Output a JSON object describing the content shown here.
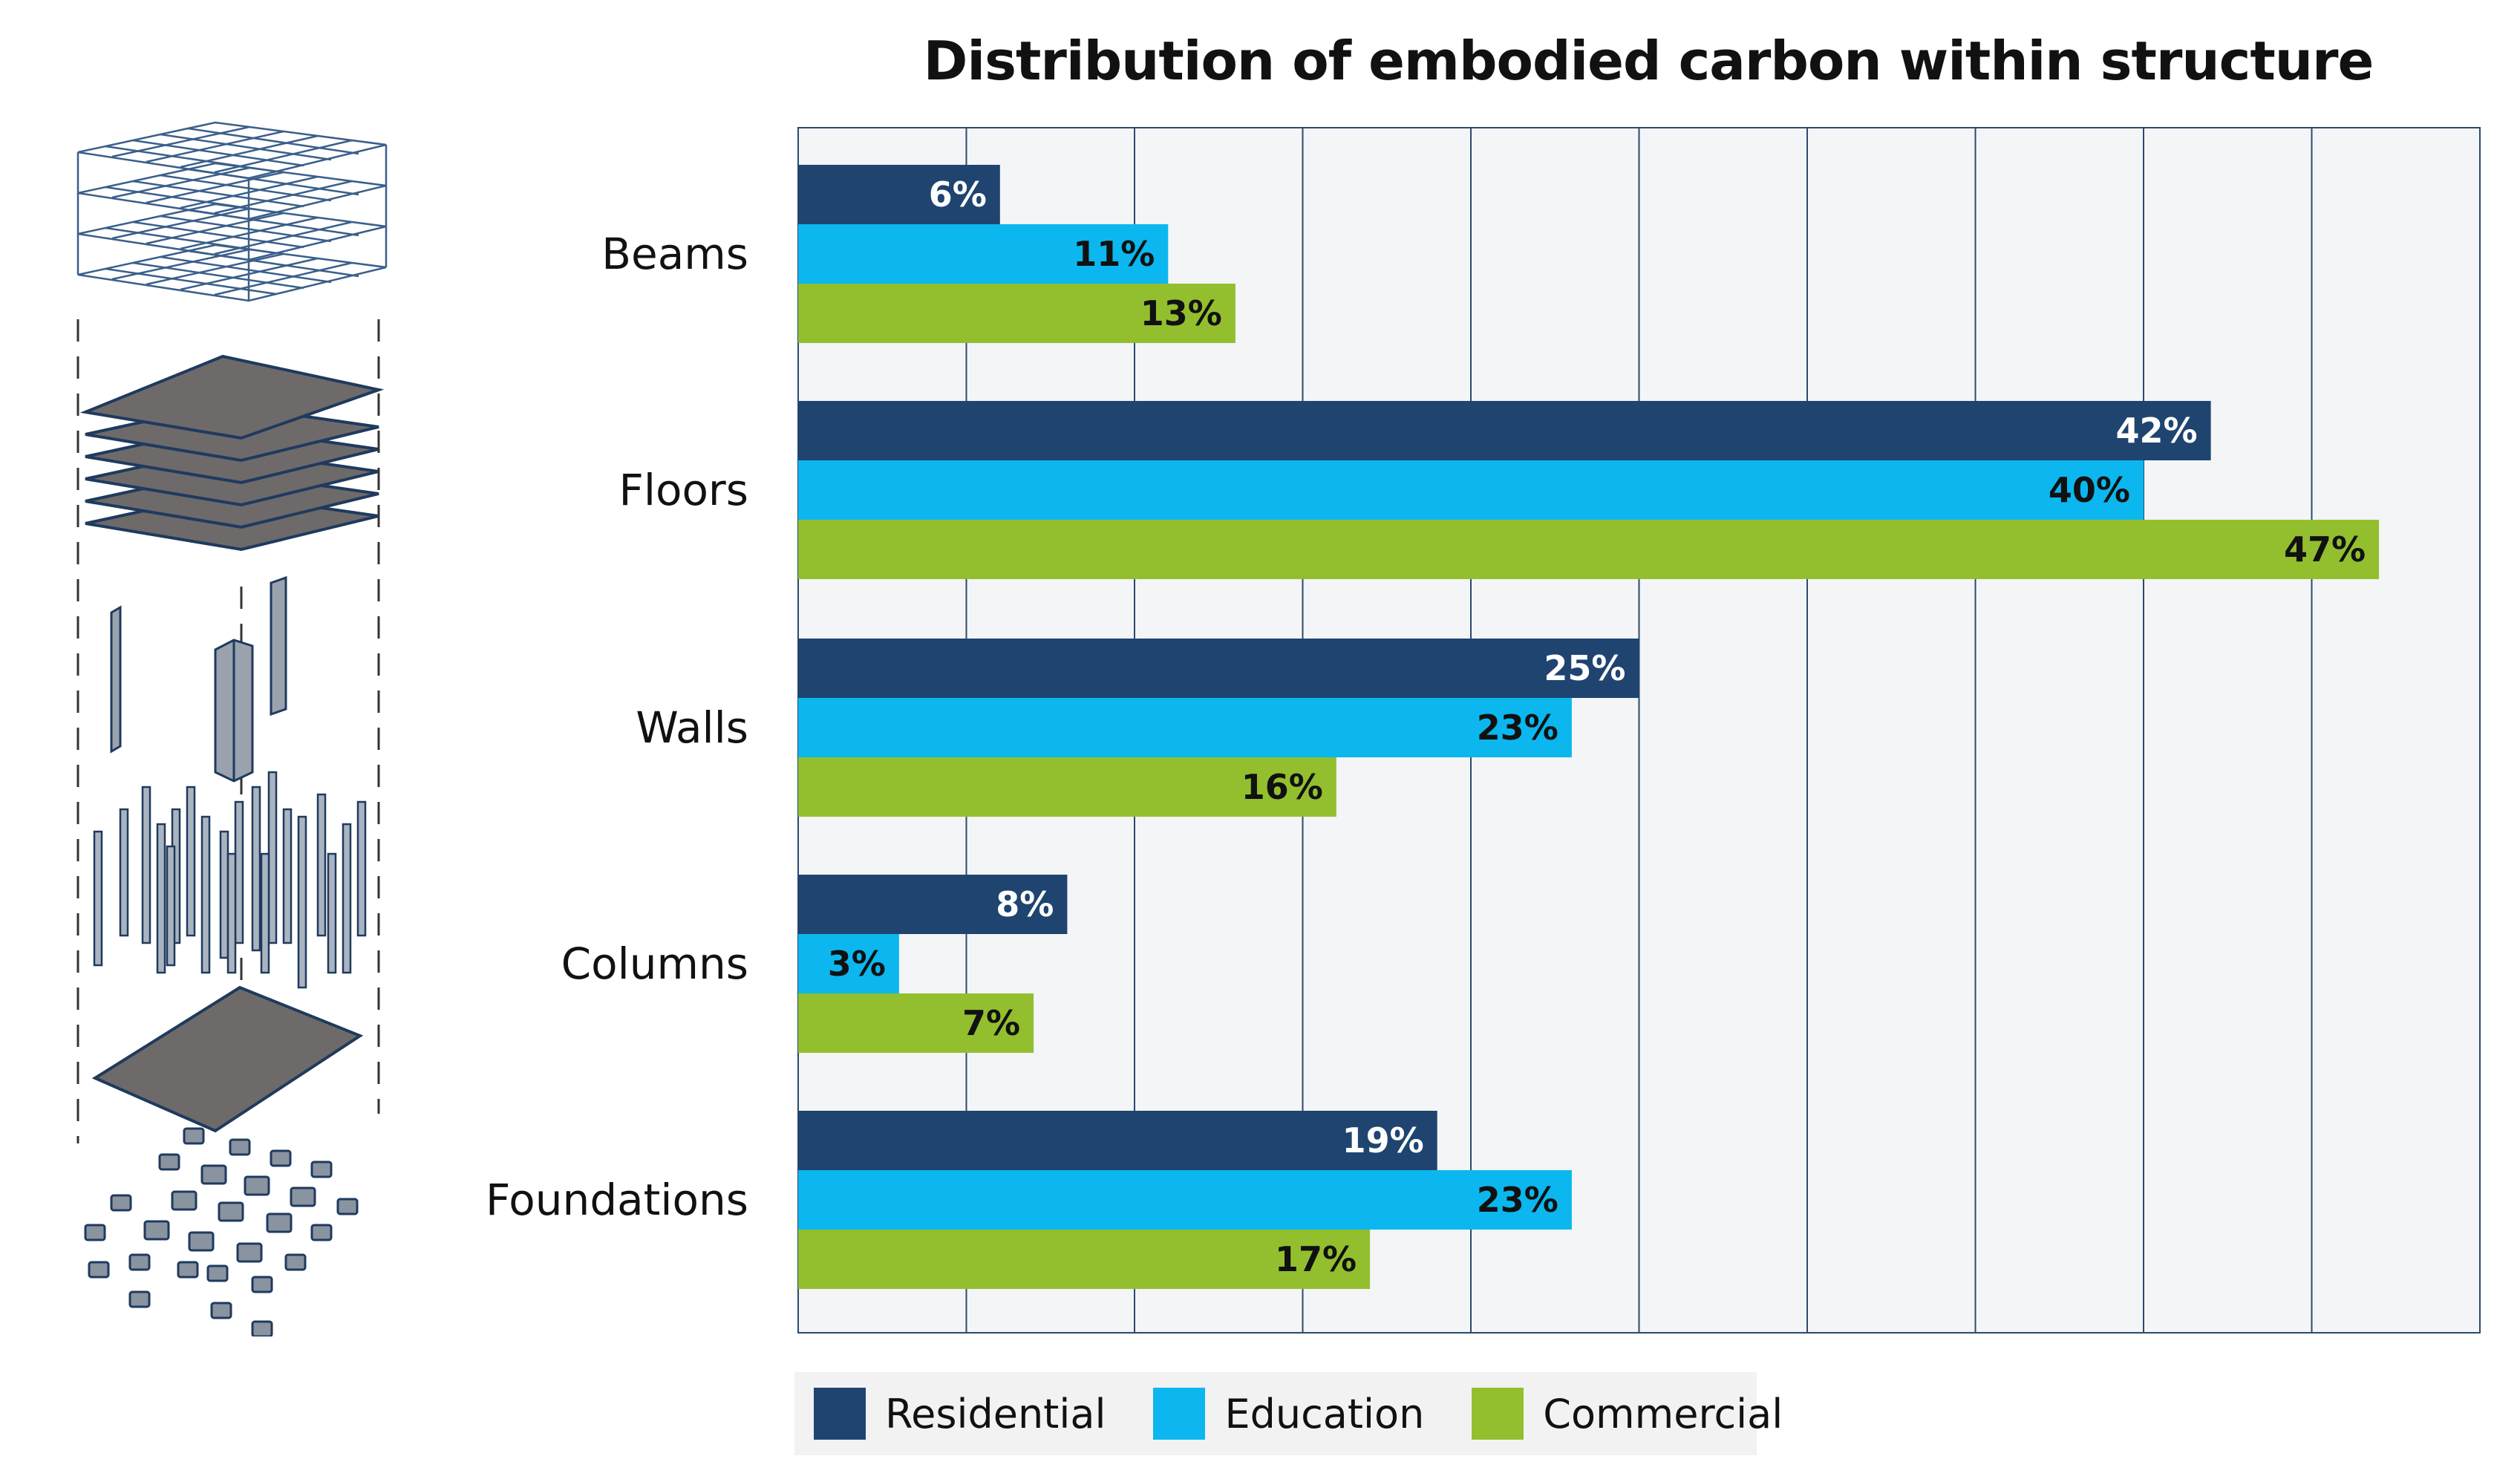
{
  "chart_data": {
    "type": "bar",
    "orientation": "horizontal",
    "title": "Distribution of embodied carbon within structure",
    "categories": [
      "Beams",
      "Floors",
      "Walls",
      "Columns",
      "Foundations"
    ],
    "series": [
      {
        "name": "Residential",
        "color": "#1f4470",
        "label_color": "#ffffff",
        "values": [
          6,
          42,
          25,
          8,
          19
        ]
      },
      {
        "name": "Education",
        "color": "#0bb7ee",
        "label_color": "#111111",
        "values": [
          11,
          40,
          23,
          3,
          23
        ]
      },
      {
        "name": "Commercial",
        "color": "#93bf2f",
        "label_color": "#111111",
        "values": [
          13,
          47,
          16,
          7,
          17
        ]
      }
    ],
    "value_suffix": "%",
    "xlim": [
      0,
      50
    ],
    "grid": true,
    "xlabel": "",
    "ylabel": "",
    "legend_position": "bottom"
  },
  "colors": {
    "plot_background": "#f3f5f7",
    "grid_line": "#2c4a6e"
  }
}
